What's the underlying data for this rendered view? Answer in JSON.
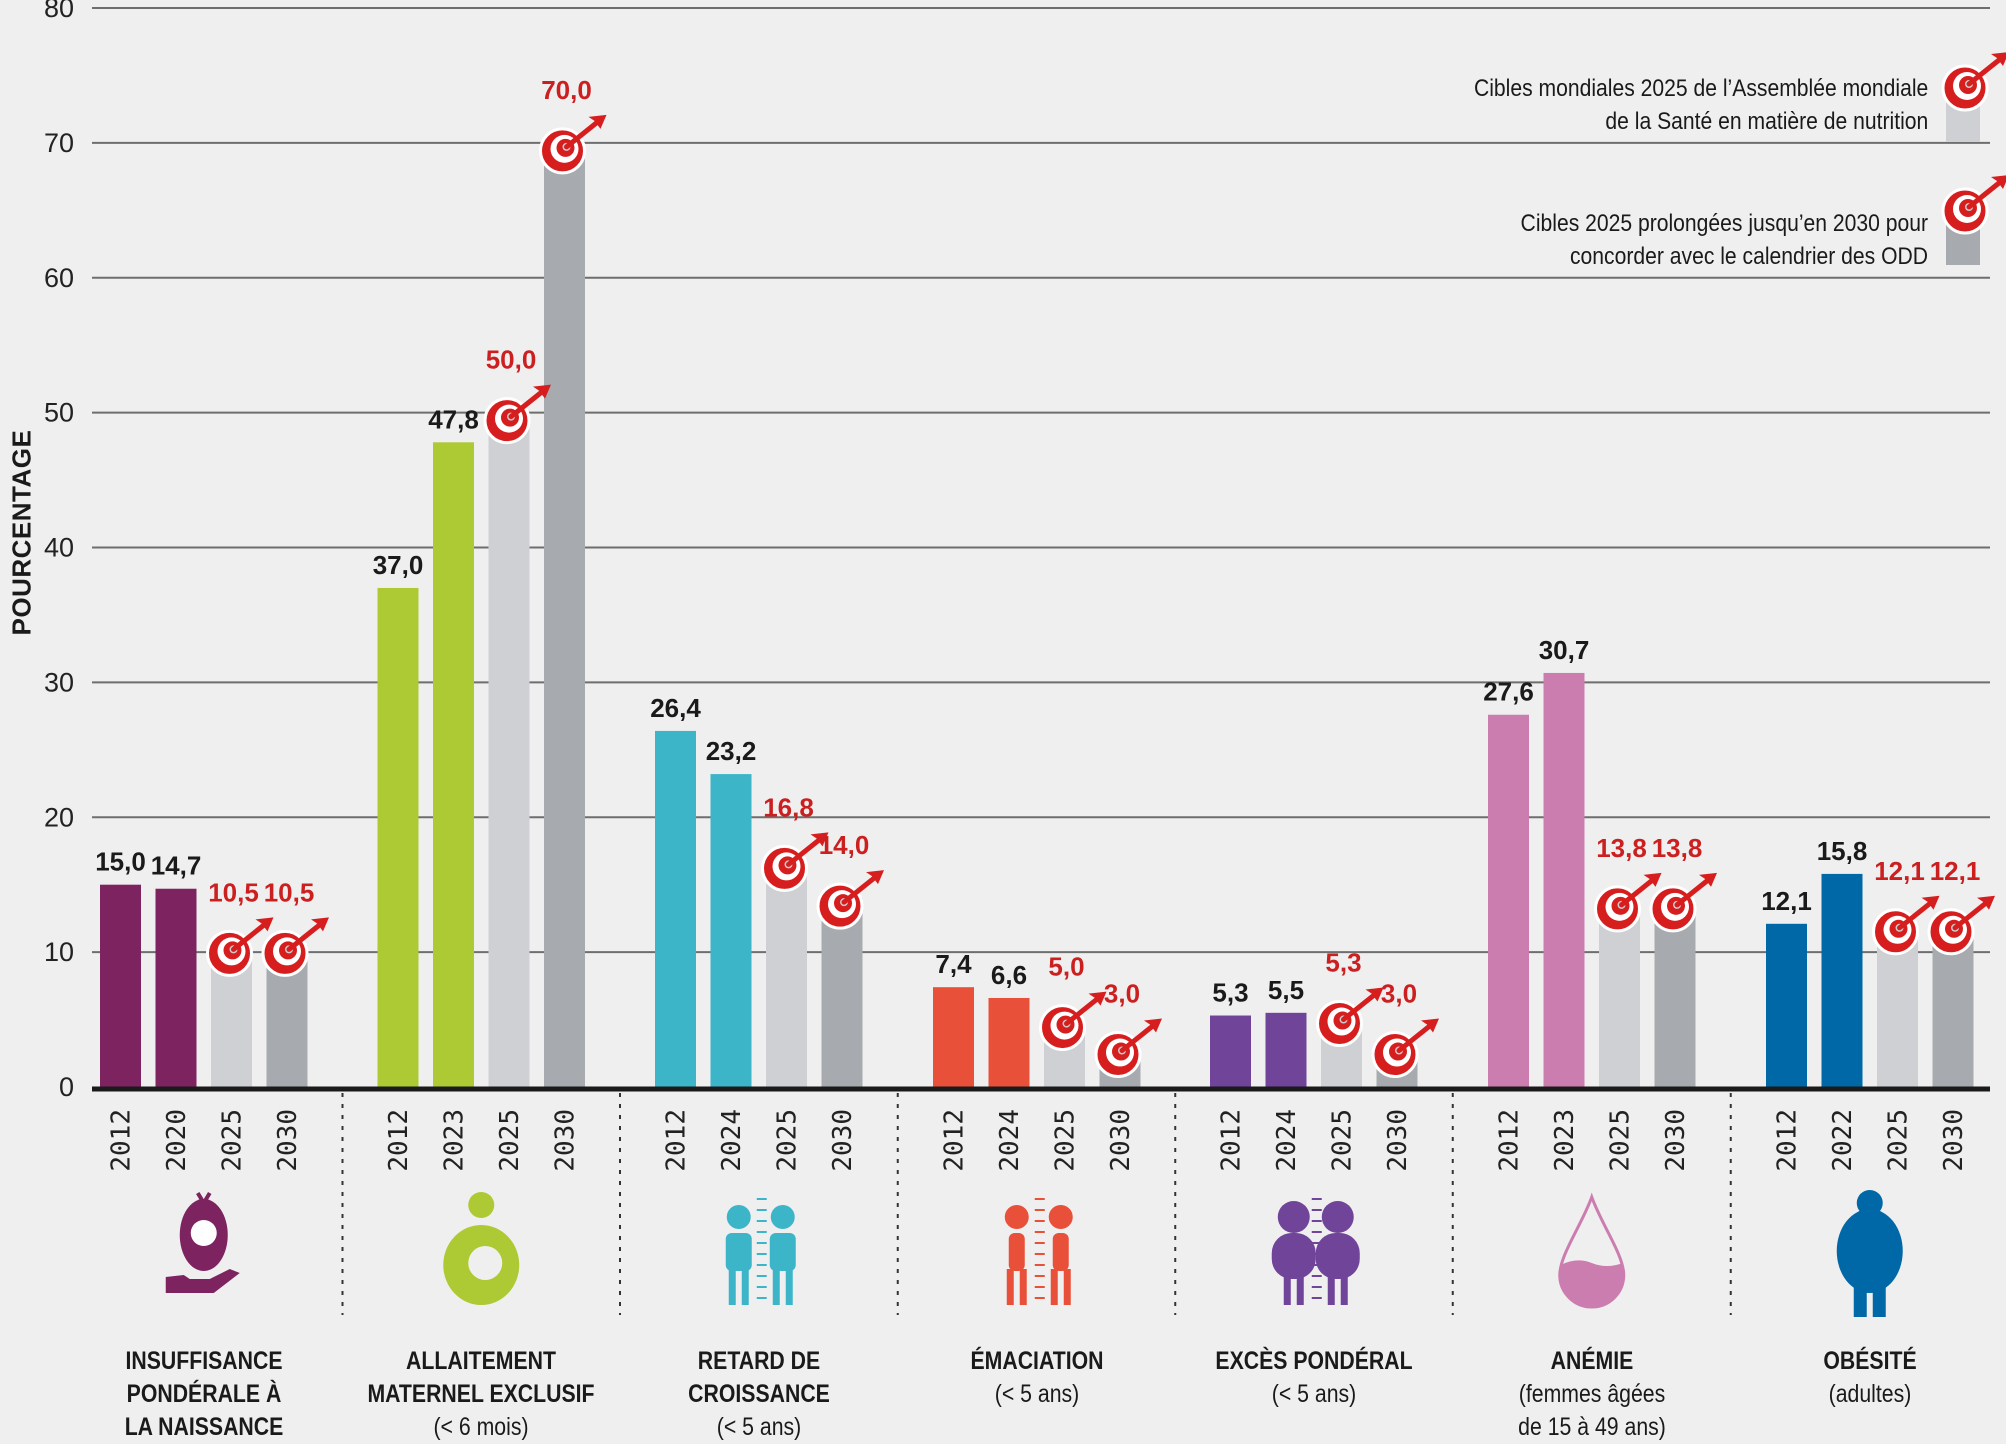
{
  "chart_data": {
    "type": "bar",
    "title": "",
    "xlabel": "",
    "ylabel": "POURCENTAGE",
    "ylim": [
      0,
      80
    ],
    "yticks": [
      0,
      10,
      20,
      30,
      40,
      50,
      60,
      70,
      80
    ],
    "grid": true,
    "legend_position": "top-right",
    "decimal_separator": ",",
    "colors": {
      "target_2025": "#cfd0d3",
      "target_2030": "#a7abaf",
      "target_label": "#cc1f1f",
      "value_label": "#1a1a1a"
    },
    "legend": [
      {
        "name": "target_2025",
        "label": "Cibles mondiales 2025 de l’Assemblée mondiale de la Santé en matière de nutrition",
        "line1": "Cibles mondiales 2025 de l’Assemblée mondiale",
        "line2": "de la Santé en matière de nutrition",
        "icon": "target-dart-icon"
      },
      {
        "name": "target_2030",
        "label": "Cibles 2025 prolongées jusqu’en 2030 pour concorder avec le calendrier des ODD",
        "line1": "Cibles 2025 prolongées jusqu’en 2030 pour",
        "line2": "concorder avec le calendrier des ODD",
        "icon": "target-dart-icon"
      }
    ],
    "groups": [
      {
        "title": "INSUFFISANCE PONDÉRALE À LA NAISSANCE",
        "title_lines": [
          "INSUFFISANCE",
          "PONDÉRALE À",
          "LA NAISSANCE"
        ],
        "subtitle": "",
        "color": "#7d2360",
        "icon": "baby-in-hand-icon",
        "bars": [
          {
            "year": "2012",
            "value": 15.0,
            "label": "15,0",
            "kind": "actual"
          },
          {
            "year": "2020",
            "value": 14.7,
            "label": "14,7",
            "kind": "actual"
          },
          {
            "year": "2025",
            "value": 10.5,
            "label": "10,5",
            "kind": "target_2025"
          },
          {
            "year": "2030",
            "value": 10.5,
            "label": "10,5",
            "kind": "target_2030"
          }
        ]
      },
      {
        "title": "ALLAITEMENT MATERNEL EXCLUSIF",
        "title_lines": [
          "ALLAITEMENT",
          "MATERNEL EXCLUSIF"
        ],
        "subtitle": "(< 6 mois)",
        "color": "#adc934",
        "icon": "breastfeeding-icon",
        "bars": [
          {
            "year": "2012",
            "value": 37.0,
            "label": "37,0",
            "kind": "actual"
          },
          {
            "year": "2023",
            "value": 47.8,
            "label": "47,8",
            "kind": "actual"
          },
          {
            "year": "2025",
            "value": 50.0,
            "label": "50,0",
            "kind": "target_2025"
          },
          {
            "year": "2030",
            "value": 70.0,
            "label": "70,0",
            "kind": "target_2030"
          }
        ]
      },
      {
        "title": "RETARD DE CROISSANCE",
        "title_lines": [
          "RETARD DE",
          "CROISSANCE"
        ],
        "subtitle": "(< 5 ans)",
        "color": "#3db5c8",
        "icon": "stunted-children-icon",
        "bars": [
          {
            "year": "2012",
            "value": 26.4,
            "label": "26,4",
            "kind": "actual"
          },
          {
            "year": "2024",
            "value": 23.2,
            "label": "23,2",
            "kind": "actual"
          },
          {
            "year": "2025",
            "value": 16.8,
            "label": "16,8",
            "kind": "target_2025"
          },
          {
            "year": "2030",
            "value": 14.0,
            "label": "14,0",
            "kind": "target_2030"
          }
        ]
      },
      {
        "title": "ÉMACIATION",
        "title_lines": [
          "ÉMACIATION"
        ],
        "subtitle": "(< 5 ans)",
        "color": "#e9503a",
        "icon": "wasted-children-icon",
        "bars": [
          {
            "year": "2012",
            "value": 7.4,
            "label": "7,4",
            "kind": "actual"
          },
          {
            "year": "2024",
            "value": 6.6,
            "label": "6,6",
            "kind": "actual"
          },
          {
            "year": "2025",
            "value": 5.0,
            "label": "5,0",
            "kind": "target_2025"
          },
          {
            "year": "2030",
            "value": 3.0,
            "label": "3,0",
            "kind": "target_2030"
          }
        ]
      },
      {
        "title": "EXCÈS PONDÉRAL",
        "title_lines": [
          "EXCÈS PONDÉRAL"
        ],
        "subtitle": "(< 5 ans)",
        "color": "#6f4499",
        "icon": "overweight-children-icon",
        "bars": [
          {
            "year": "2012",
            "value": 5.3,
            "label": "5,3",
            "kind": "actual"
          },
          {
            "year": "2024",
            "value": 5.5,
            "label": "5,5",
            "kind": "actual"
          },
          {
            "year": "2025",
            "value": 5.3,
            "label": "5,3",
            "kind": "target_2025"
          },
          {
            "year": "2030",
            "value": 3.0,
            "label": "3,0",
            "kind": "target_2030"
          }
        ]
      },
      {
        "title": "ANÉMIE",
        "title_lines": [
          "ANÉMIE"
        ],
        "subtitle": "(femmes âgées de 15 à 49 ans)",
        "subtitle_lines": [
          "(femmes âgées",
          "de 15 à 49 ans)"
        ],
        "color": "#cc7db0",
        "icon": "blood-drop-icon",
        "bars": [
          {
            "year": "2012",
            "value": 27.6,
            "label": "27,6",
            "kind": "actual"
          },
          {
            "year": "2023",
            "value": 30.7,
            "label": "30,7",
            "kind": "actual"
          },
          {
            "year": "2025",
            "value": 13.8,
            "label": "13,8",
            "kind": "target_2025"
          },
          {
            "year": "2030",
            "value": 13.8,
            "label": "13,8",
            "kind": "target_2030"
          }
        ]
      },
      {
        "title": "OBÉSITÉ",
        "title_lines": [
          "OBÉSITÉ"
        ],
        "subtitle": "(adultes)",
        "color": "#0068a6",
        "icon": "obese-adult-icon",
        "bars": [
          {
            "year": "2012",
            "value": 12.1,
            "label": "12,1",
            "kind": "actual"
          },
          {
            "year": "2022",
            "value": 15.8,
            "label": "15,8",
            "kind": "actual"
          },
          {
            "year": "2025",
            "value": 12.1,
            "label": "12,1",
            "kind": "target_2025"
          },
          {
            "year": "2030",
            "value": 12.1,
            "label": "12,1",
            "kind": "target_2030"
          }
        ]
      }
    ]
  }
}
